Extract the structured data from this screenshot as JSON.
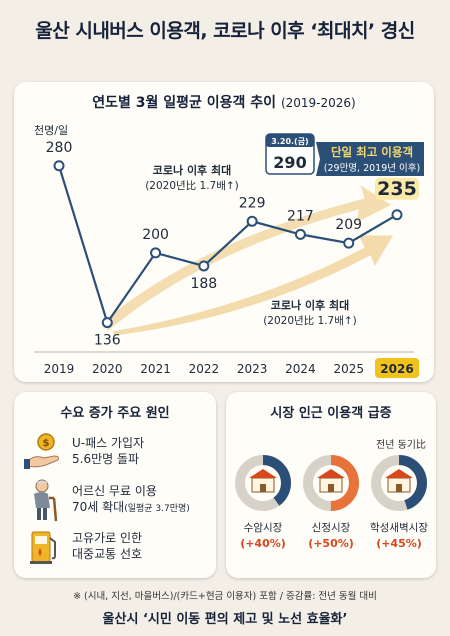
{
  "headline": "울산 시내버스 이용객, 코로나 이후 ‘최대치’ 경신",
  "chart_title_main": "연도별 3월 일평균 이용객 추이",
  "chart_title_years": "(2019-2026)",
  "chart_data": {
    "type": "line",
    "title": "연도별 3월 일평균 이용객 추이 (2019-2026)",
    "ylabel": "천명/일",
    "xlabel": "",
    "categories": [
      "2019",
      "2020",
      "2021",
      "2022",
      "2023",
      "2024",
      "2025",
      "2026"
    ],
    "values": [
      280,
      136,
      200,
      188,
      229,
      217,
      209,
      235
    ],
    "ylim": [
      120,
      300
    ],
    "highlight_category": "2026",
    "colors": {
      "line": "#2c4f77",
      "highlight": "#f0c21e",
      "arrow": "#f2d9a8"
    }
  },
  "callout": {
    "date": "3.20.(금)",
    "value": "290",
    "label": "단일 최고 이용객",
    "sub": "(29만명, 2019년 이후)"
  },
  "arrow_labels": {
    "upper_title": "코로나 이후 최대",
    "upper_sub": "(2020년比 1.7배↑)",
    "lower_title": "코로나 이후 최대",
    "lower_sub": "(2020년比 1.7배↑)"
  },
  "causes": {
    "title": "수요 증가 주요 원인",
    "items": [
      {
        "icon": "coin-hand-icon",
        "line1": "U-패스 가입자",
        "line2": "5.6만명 돌파",
        "small": ""
      },
      {
        "icon": "elderly-icon",
        "line1": "어르신 무료 이용",
        "line2": "70세 확대",
        "small": "(일평균 3.7만명)"
      },
      {
        "icon": "fuel-pump-icon",
        "line1": "고유가로 인한",
        "line2": "대중교통 선호",
        "small": ""
      }
    ]
  },
  "markets": {
    "title": "시장 인근 이용객 급증",
    "yoy_label": "전년 동기比",
    "items": [
      {
        "name": "수암시장",
        "pct": "(+40%)",
        "ratio": 0.4,
        "color": "#2c4f77"
      },
      {
        "name": "신정시장",
        "pct": "(+50%)",
        "ratio": 0.5,
        "color": "#e8733a"
      },
      {
        "name": "학성새벽시장",
        "pct": "(+45%)",
        "ratio": 0.45,
        "color": "#2c4f77"
      }
    ]
  },
  "footnote": "※ (시내, 지선, 마을버스)/(카드+현금 이용자) 포함 / 증감률: 전년 동월 대비",
  "slogan": "울산시 ‘시민 이동 편의 제고 및 노선 효율화’"
}
